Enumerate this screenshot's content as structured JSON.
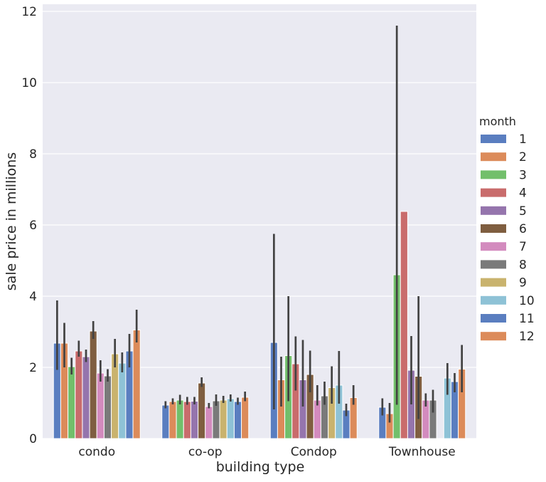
{
  "chart_data": {
    "type": "bar",
    "title": "",
    "xlabel": "building type",
    "ylabel": "sale price in millions",
    "ylim": [
      0,
      12.2
    ],
    "yticks": [
      0,
      2,
      4,
      6,
      8,
      10,
      12
    ],
    "grid": true,
    "legend_title": "month",
    "legend_placement": "right",
    "categories": [
      "condo",
      "co-op",
      "Condop",
      "Townhouse"
    ],
    "series": [
      {
        "name": "1",
        "color": "#5A7EC0",
        "values": [
          2.68,
          0.94,
          2.7,
          0.88
        ],
        "ci": [
          [
            1.93,
            3.88
          ],
          [
            0.85,
            1.05
          ],
          [
            0.82,
            5.75
          ],
          [
            0.65,
            1.13
          ]
        ]
      },
      {
        "name": "2",
        "color": "#DC8B5A",
        "values": [
          2.68,
          1.04,
          1.65,
          0.7
        ],
        "ci": [
          [
            2.0,
            3.25
          ],
          [
            0.96,
            1.13
          ],
          [
            0.9,
            2.3
          ],
          [
            0.45,
            1.0
          ]
        ]
      },
      {
        "name": "3",
        "color": "#72BF6B",
        "values": [
          2.02,
          1.08,
          2.33,
          4.6
        ],
        "ci": [
          [
            1.8,
            2.27
          ],
          [
            0.96,
            1.23
          ],
          [
            1.05,
            4.0
          ],
          [
            0.95,
            11.6
          ]
        ]
      },
      {
        "name": "4",
        "color": "#C96C6C",
        "values": [
          2.46,
          1.04,
          2.1,
          6.38
        ],
        "ci": [
          [
            2.3,
            2.75
          ],
          [
            0.95,
            1.17
          ],
          [
            1.35,
            2.87
          ],
          null
        ]
      },
      {
        "name": "5",
        "color": "#9575AD",
        "values": [
          2.3,
          1.05,
          1.65,
          1.92
        ],
        "ci": [
          [
            2.15,
            2.5
          ],
          [
            0.96,
            1.17
          ],
          [
            0.9,
            2.77
          ],
          [
            0.96,
            2.88
          ]
        ]
      },
      {
        "name": "6",
        "color": "#7F5E40",
        "values": [
          3.02,
          1.56,
          1.8,
          1.75
        ],
        "ci": [
          [
            2.8,
            3.3
          ],
          [
            1.45,
            1.72
          ],
          [
            1.3,
            2.47
          ],
          [
            0.55,
            4.0
          ]
        ]
      },
      {
        "name": "7",
        "color": "#D38BBE",
        "values": [
          1.84,
          0.9,
          1.08,
          1.08
        ],
        "ci": [
          [
            1.6,
            2.2
          ],
          [
            0.85,
            1.0
          ],
          [
            0.93,
            1.5
          ],
          [
            0.9,
            1.27
          ]
        ]
      },
      {
        "name": "8",
        "color": "#7A7A7A",
        "values": [
          1.76,
          1.06,
          1.2,
          1.08
        ],
        "ci": [
          [
            1.6,
            1.95
          ],
          [
            0.92,
            1.24
          ],
          [
            0.95,
            1.6
          ],
          [
            0.73,
            1.37
          ]
        ]
      },
      {
        "name": "9",
        "color": "#C9B36E",
        "values": [
          2.38,
          1.08,
          1.43,
          null
        ],
        "ci": [
          [
            2.0,
            2.8
          ],
          [
            1.0,
            1.2
          ],
          [
            0.98,
            2.03
          ],
          null
        ]
      },
      {
        "name": "10",
        "color": "#8EC2D6",
        "values": [
          2.12,
          1.12,
          1.5,
          1.7
        ],
        "ci": [
          [
            1.86,
            2.42
          ],
          [
            1.04,
            1.24
          ],
          [
            0.98,
            2.46
          ],
          [
            1.23,
            2.12
          ]
        ]
      },
      {
        "name": "11",
        "color": "#5A7EC0",
        "values": [
          2.46,
          1.04,
          0.8,
          1.6
        ],
        "ci": [
          [
            2.0,
            2.94
          ],
          [
            0.95,
            1.15
          ],
          [
            0.63,
            0.98
          ],
          [
            1.3,
            1.84
          ]
        ]
      },
      {
        "name": "12",
        "color": "#DC8B5A",
        "values": [
          3.05,
          1.16,
          1.15,
          1.95
        ],
        "ci": [
          [
            2.7,
            3.62
          ],
          [
            1.05,
            1.32
          ],
          [
            0.95,
            1.5
          ],
          [
            1.3,
            2.63
          ]
        ]
      }
    ]
  }
}
